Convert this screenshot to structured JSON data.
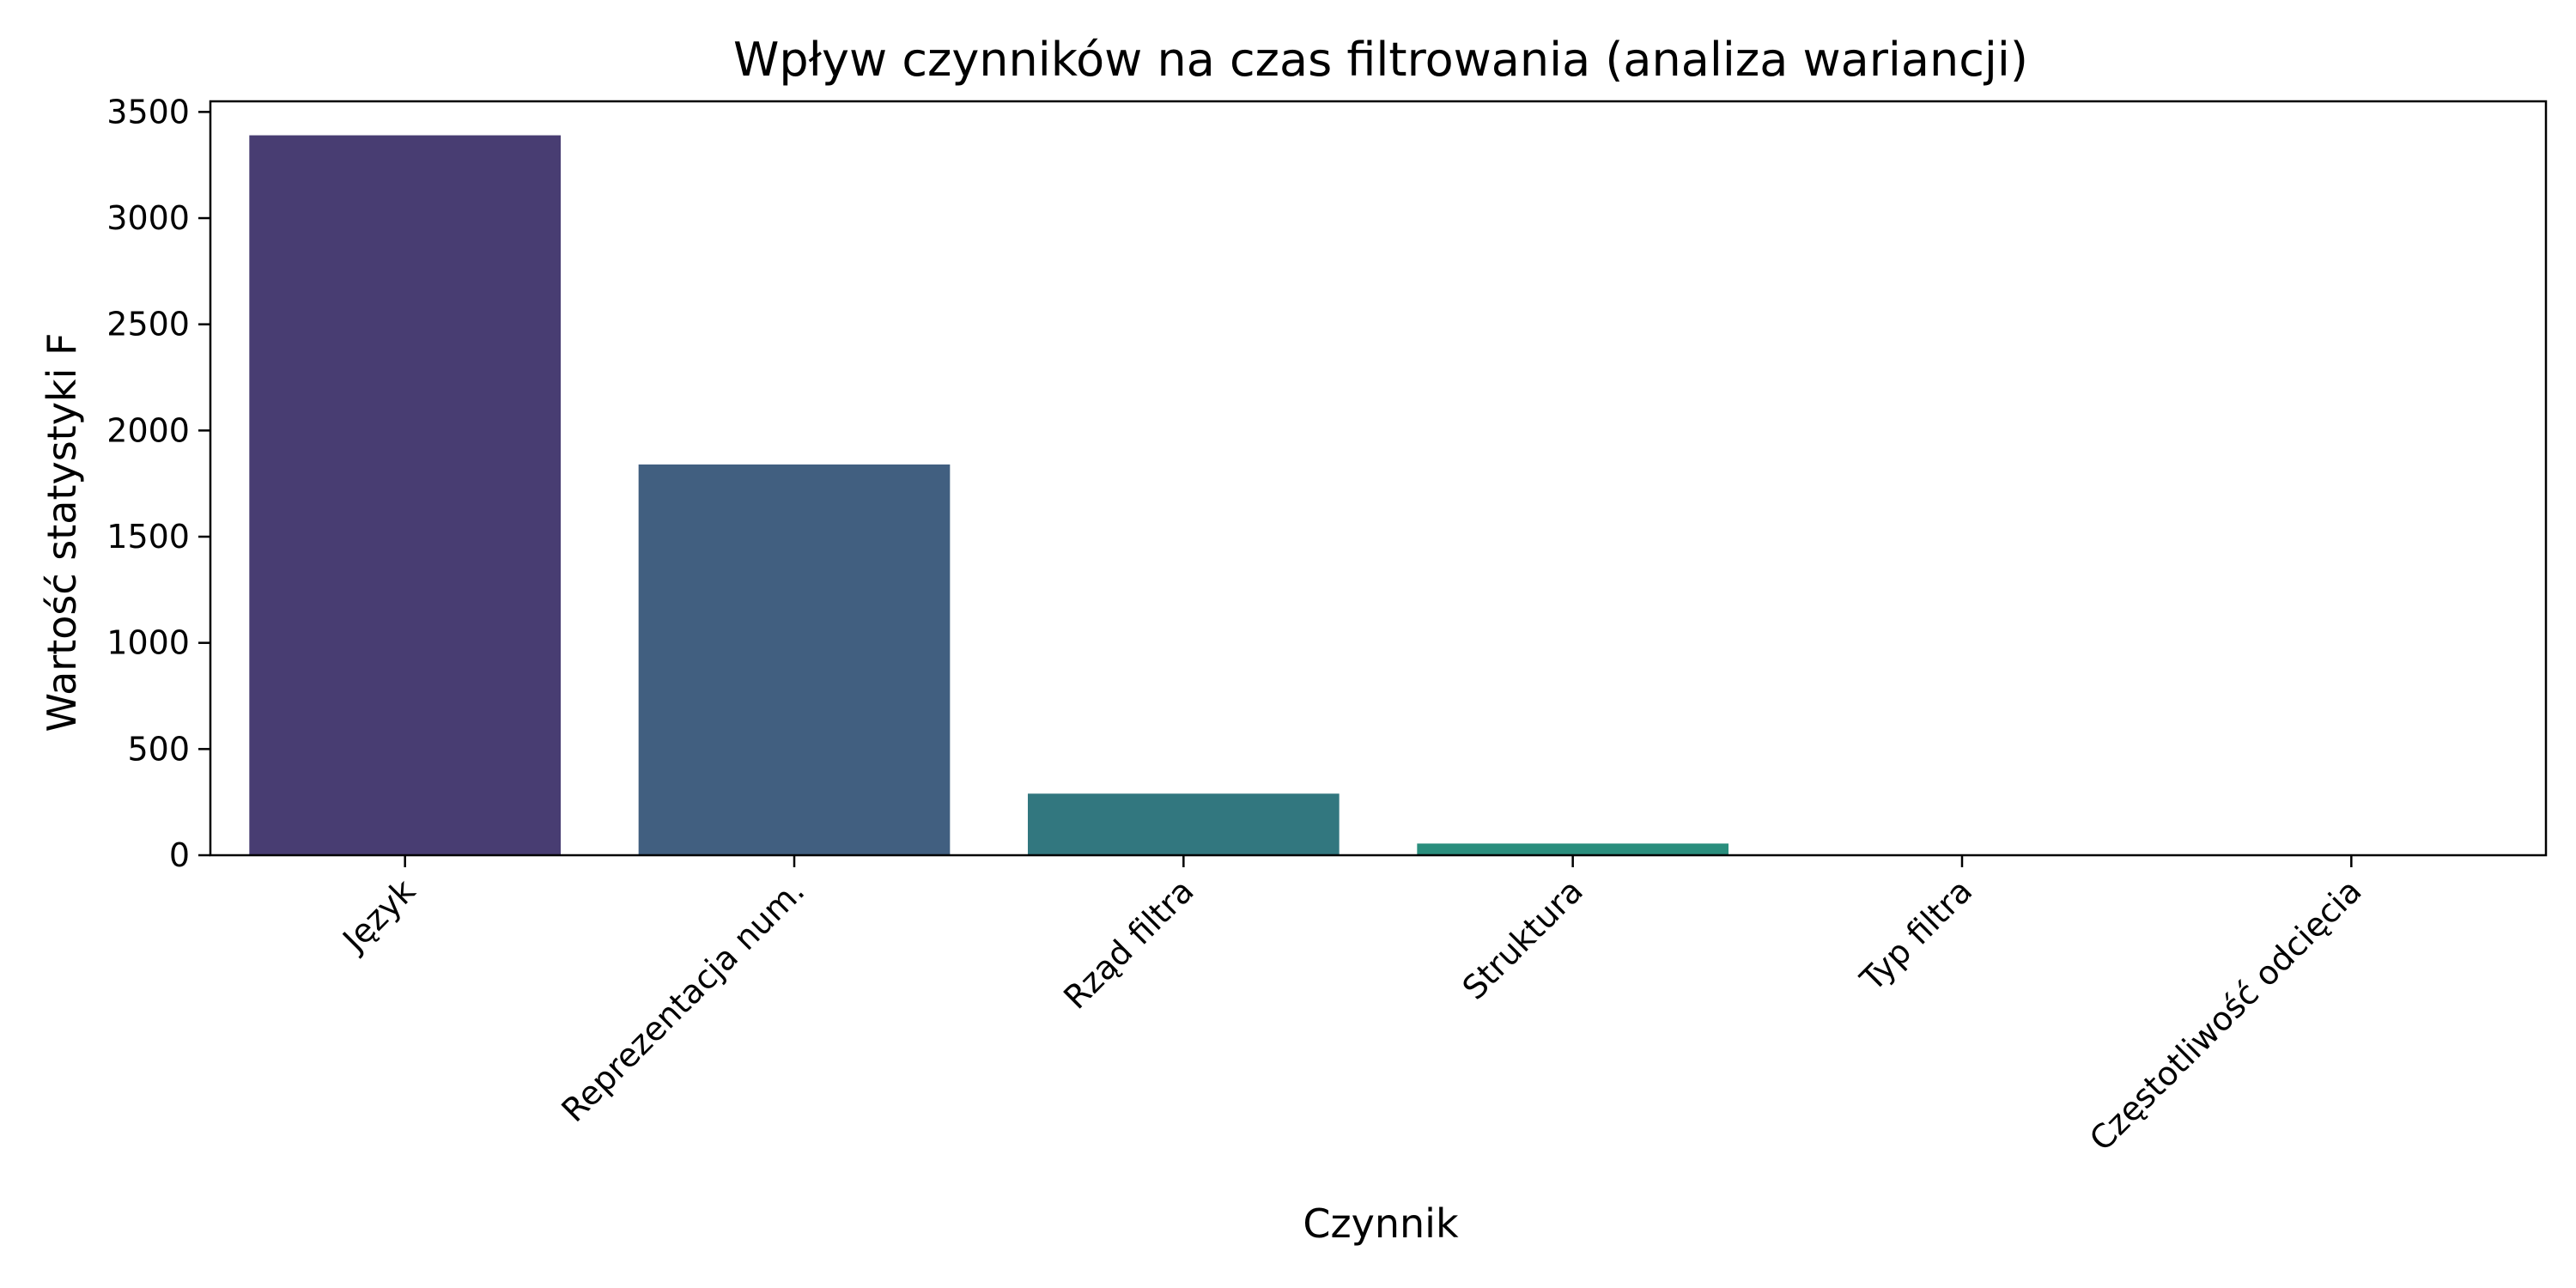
{
  "chart_data": {
    "type": "bar",
    "title": "Wpływ czynników na czas filtrowania (analiza wariancji)",
    "xlabel": "Czynnik",
    "ylabel": "Wartość statystyki F",
    "categories": [
      "Język",
      "Reprezentacja num.",
      "Rząd filtra",
      "Struktura",
      "Typ filtra",
      "Częstotliwość odcięcia"
    ],
    "values": [
      3390,
      1840,
      290,
      55,
      3,
      1
    ],
    "colors": [
      "#483d72",
      "#415f80",
      "#32777f",
      "#2a8e7d",
      "#2aa276",
      "#3cb56c"
    ],
    "ylim": [
      0,
      3550
    ],
    "yticks": [
      0,
      500,
      1000,
      1500,
      2000,
      2500,
      3000,
      3500
    ],
    "grid": false,
    "xtick_rotation": -45
  }
}
